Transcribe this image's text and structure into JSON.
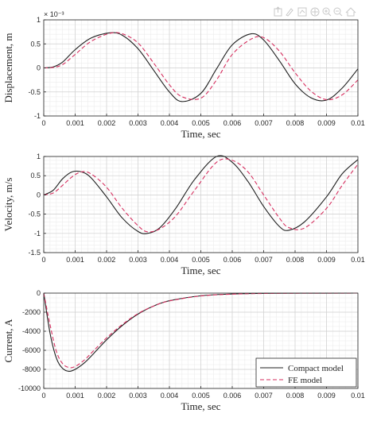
{
  "toolbar": {
    "icons": [
      "export-icon",
      "brush-icon",
      "data-tip-icon",
      "pan-icon",
      "zoom-in-icon",
      "zoom-out-icon",
      "home-icon"
    ]
  },
  "colors": {
    "compact": "#1f1f1f",
    "fe": "#d62f5f",
    "grid_minor": "#ececec",
    "grid_major": "#d0d0d0",
    "axis": "#262626"
  },
  "chart_data": [
    {
      "type": "line",
      "ylabel": "Displacement, m",
      "xlabel": "Time, sec",
      "exponent_label": "× 10⁻³",
      "xlim": [
        0,
        0.01
      ],
      "ylim": [
        -1,
        1
      ],
      "xticks": [
        "0",
        "0.001",
        "0.002",
        "0.003",
        "0.004",
        "0.005",
        "0.006",
        "0.007",
        "0.008",
        "0.009",
        "0.01"
      ],
      "yticks": [
        "-1",
        "-0.5",
        "0",
        "0.5",
        "1"
      ],
      "ytick_values": [
        -1,
        -0.5,
        0,
        0.5,
        1
      ],
      "grid": true,
      "x": [
        0,
        0.0003,
        0.0006,
        0.001,
        0.0015,
        0.0021,
        0.0025,
        0.003,
        0.0035,
        0.004,
        0.0044,
        0.005,
        0.0055,
        0.006,
        0.0066,
        0.007,
        0.0075,
        0.008,
        0.0085,
        0.009,
        0.0095,
        0.01
      ],
      "series": [
        {
          "name": "Compact model",
          "values": [
            0,
            0.02,
            0.12,
            0.38,
            0.62,
            0.73,
            0.68,
            0.4,
            -0.05,
            -0.5,
            -0.7,
            -0.53,
            -0.02,
            0.48,
            0.71,
            0.58,
            0.15,
            -0.33,
            -0.62,
            -0.67,
            -0.42,
            -0.02
          ]
        },
        {
          "name": "FE model",
          "values": [
            0,
            0.01,
            0.07,
            0.28,
            0.55,
            0.72,
            0.71,
            0.52,
            0.1,
            -0.35,
            -0.6,
            -0.63,
            -0.25,
            0.28,
            0.6,
            0.63,
            0.35,
            -0.1,
            -0.48,
            -0.66,
            -0.56,
            -0.25
          ]
        }
      ]
    },
    {
      "type": "line",
      "ylabel": "Velocity, m/s",
      "xlabel": "Time, sec",
      "xlim": [
        0,
        0.01
      ],
      "ylim": [
        -1.5,
        1
      ],
      "xticks": [
        "0",
        "0.001",
        "0.002",
        "0.003",
        "0.004",
        "0.005",
        "0.006",
        "0.007",
        "0.008",
        "0.009",
        "0.01"
      ],
      "yticks": [
        "-1.5",
        "-1",
        "-0.5",
        "0",
        "0.5",
        "1"
      ],
      "ytick_values": [
        -1.5,
        -1,
        -0.5,
        0,
        0.5,
        1
      ],
      "grid": true,
      "x": [
        0,
        0.0003,
        0.0006,
        0.0009,
        0.0012,
        0.0015,
        0.002,
        0.0025,
        0.003,
        0.0033,
        0.0037,
        0.0042,
        0.0048,
        0.0055,
        0.006,
        0.0065,
        0.007,
        0.0075,
        0.0078,
        0.0083,
        0.009,
        0.0095,
        0.01
      ],
      "series": [
        {
          "name": "Compact model",
          "values": [
            0,
            0.12,
            0.42,
            0.6,
            0.6,
            0.45,
            -0.05,
            -0.6,
            -0.95,
            -1.0,
            -0.85,
            -0.35,
            0.4,
            1.0,
            0.85,
            0.35,
            -0.3,
            -0.82,
            -0.92,
            -0.7,
            -0.05,
            0.55,
            0.92
          ]
        },
        {
          "name": "FE model",
          "values": [
            0,
            0.05,
            0.25,
            0.47,
            0.6,
            0.55,
            0.2,
            -0.35,
            -0.8,
            -0.96,
            -0.88,
            -0.55,
            0.12,
            0.85,
            0.9,
            0.6,
            0.0,
            -0.6,
            -0.85,
            -0.86,
            -0.35,
            0.25,
            0.8
          ]
        }
      ]
    },
    {
      "type": "line",
      "ylabel": "Current, A",
      "xlabel": "Time, sec",
      "xlim": [
        0,
        0.01
      ],
      "ylim": [
        -10000,
        0
      ],
      "xticks": [
        "0",
        "0.001",
        "0.002",
        "0.003",
        "0.004",
        "0.005",
        "0.006",
        "0.007",
        "0.008",
        "0.009",
        "0.01"
      ],
      "yticks": [
        "-10000",
        "-8000",
        "-6000",
        "-4000",
        "-2000",
        "0"
      ],
      "ytick_values": [
        -10000,
        -8000,
        -6000,
        -4000,
        -2000,
        0
      ],
      "grid": true,
      "legend": {
        "position": "bottom-right"
      },
      "x": [
        0,
        0.0002,
        0.0004,
        0.0006,
        0.0008,
        0.001,
        0.0013,
        0.0016,
        0.002,
        0.0025,
        0.003,
        0.0035,
        0.004,
        0.005,
        0.006,
        0.007,
        0.008,
        0.01
      ],
      "series": [
        {
          "name": "Compact model",
          "values": [
            0,
            -4200,
            -6800,
            -7900,
            -8200,
            -8000,
            -7300,
            -6300,
            -4900,
            -3400,
            -2200,
            -1350,
            -800,
            -280,
            -90,
            -30,
            -10,
            0
          ]
        },
        {
          "name": "FE model",
          "values": [
            0,
            -3300,
            -6100,
            -7400,
            -7800,
            -7700,
            -7000,
            -6000,
            -4700,
            -3300,
            -2150,
            -1350,
            -820,
            -300,
            -110,
            -40,
            -12,
            0
          ]
        }
      ]
    }
  ]
}
